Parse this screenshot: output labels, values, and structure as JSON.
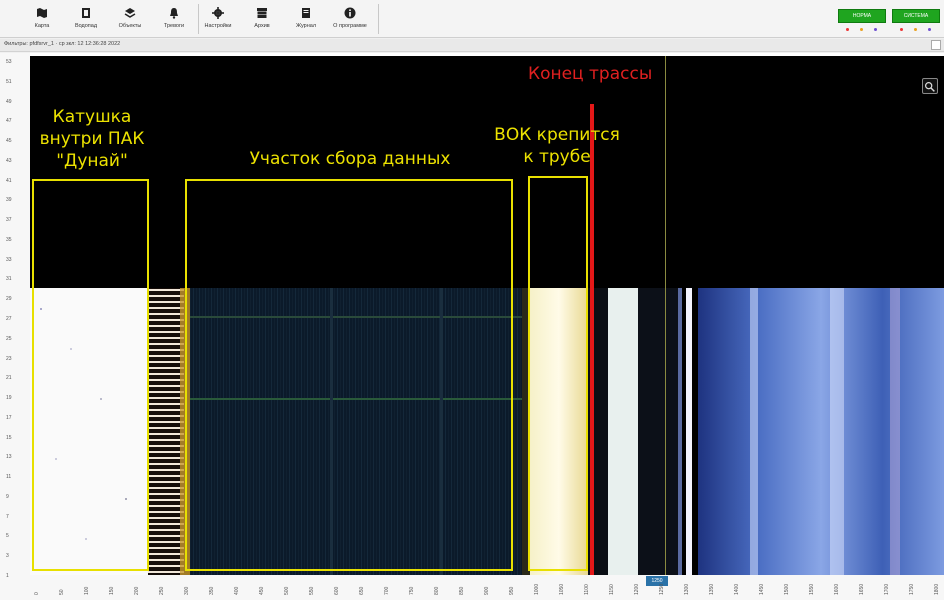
{
  "toolbar": {
    "buttons": [
      {
        "label": "Карта",
        "icon": "map-icon"
      },
      {
        "label": "Водопад",
        "icon": "waterfall-icon"
      },
      {
        "label": "Объекты",
        "icon": "objects-icon"
      },
      {
        "label": "Тревоги",
        "icon": "alarm-icon"
      },
      {
        "label": "Настройки",
        "icon": "gear-icon"
      },
      {
        "label": "Архив",
        "icon": "archive-icon"
      },
      {
        "label": "Журнал",
        "icon": "journal-icon"
      },
      {
        "label": "О программе",
        "icon": "info-icon"
      }
    ],
    "status": [
      {
        "label": "НОРМА",
        "color": "#1fa51f"
      },
      {
        "label": "СИСТЕМА",
        "color": "#1fa51f"
      }
    ]
  },
  "infobar": {
    "text": "Фильтры: pfdfsrvr_1 · ср зкл: 12 12:36:28 2022"
  },
  "waterfall": {
    "y_ticks": [
      "53",
      "51",
      "49",
      "47",
      "45",
      "43",
      "41",
      "39",
      "37",
      "35",
      "33",
      "31",
      "29",
      "27",
      "25",
      "23",
      "21",
      "19",
      "17",
      "15",
      "13",
      "11",
      "9",
      "7",
      "5",
      "3",
      "1"
    ],
    "x_ticks": [
      "0",
      "50",
      "100",
      "150",
      "200",
      "250",
      "300",
      "350",
      "400",
      "450",
      "500",
      "550",
      "600",
      "650",
      "700",
      "750",
      "800",
      "850",
      "900",
      "950",
      "1000",
      "1050",
      "1100",
      "1150",
      "1200",
      "1250",
      "1300",
      "1350",
      "1400",
      "1450",
      "1500",
      "1550",
      "1600",
      "1650",
      "1700",
      "1750",
      "1800"
    ],
    "x_highlight": "1250",
    "annotations": {
      "coil": "Катушка внутри ПАК \"Дунай\"",
      "data_section": "Участок сбора данных",
      "fiber_pipe": "ВОК крепится к трубе",
      "route_end": "Конец трассы"
    }
  }
}
